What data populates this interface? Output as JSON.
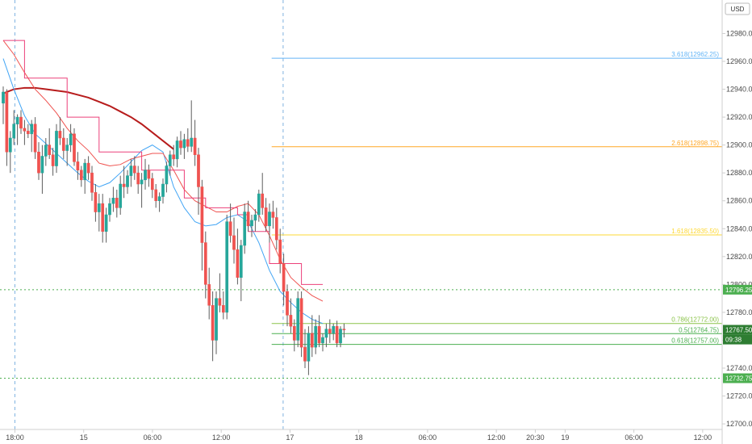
{
  "chart_data": {
    "type": "candlestick",
    "currency": "USD",
    "y_axis": {
      "ylim": [
        12696,
        13004
      ],
      "ticks": [
        12700,
        12720,
        12740,
        12760,
        12780,
        12800,
        12820,
        12840,
        12860,
        12880,
        12900,
        12920,
        12940,
        12960,
        12980
      ],
      "tick_labels": [
        "12700.00",
        "12720.00",
        "12740.00",
        "12760.00",
        "12780.00",
        "12800.00",
        "12820.00",
        "12840.00",
        "12860.00",
        "12880.00",
        "12900.00",
        "12920.00",
        "12940.00",
        "12960.00",
        "12980.00"
      ]
    },
    "x_axis": {
      "labels": [
        {
          "text": "18:00",
          "x": 0
        },
        {
          "text": "15",
          "x": 6
        },
        {
          "text": "06:00",
          "x": 12
        },
        {
          "text": "12:00",
          "x": 18
        },
        {
          "text": "17",
          "x": 24
        },
        {
          "text": "18",
          "x": 30
        },
        {
          "text": "06:00",
          "x": 36
        },
        {
          "text": "12:00",
          "x": 42
        },
        {
          "text": "20:30",
          "x": 45.4
        },
        {
          "text": "19",
          "x": 48
        },
        {
          "text": "06:00",
          "x": 54
        },
        {
          "text": "12:00",
          "x": 60
        }
      ],
      "xlim": [
        -1.3,
        61.7
      ],
      "session_breaks": [
        0,
        23.4
      ]
    },
    "ohlc": [
      [
        12930,
        12942,
        12915,
        12938
      ],
      [
        12938,
        12940,
        12885,
        12895
      ],
      [
        12895,
        12910,
        12880,
        12905
      ],
      [
        12905,
        12925,
        12900,
        12915
      ],
      [
        12915,
        12922,
        12900,
        12920
      ],
      [
        12920,
        12925,
        12908,
        12912
      ],
      [
        12912,
        12918,
        12900,
        12910
      ],
      [
        12910,
        12915,
        12905,
        12908
      ],
      [
        12908,
        12918,
        12895,
        12915
      ],
      [
        12915,
        12920,
        12890,
        12895
      ],
      [
        12895,
        12902,
        12875,
        12880
      ],
      [
        12880,
        12900,
        12865,
        12892
      ],
      [
        12892,
        12905,
        12885,
        12900
      ],
      [
        12900,
        12912,
        12890,
        12893
      ],
      [
        12893,
        12898,
        12878,
        12885
      ],
      [
        12885,
        12915,
        12880,
        12910
      ],
      [
        12910,
        12920,
        12900,
        12905
      ],
      [
        12905,
        12912,
        12890,
        12896
      ],
      [
        12896,
        12905,
        12885,
        12900
      ],
      [
        12900,
        12915,
        12895,
        12908
      ],
      [
        12908,
        12912,
        12885,
        12888
      ],
      [
        12888,
        12895,
        12875,
        12882
      ],
      [
        12882,
        12885,
        12870,
        12875
      ],
      [
        12875,
        12890,
        12865,
        12887
      ],
      [
        12887,
        12892,
        12875,
        12880
      ],
      [
        12880,
        12885,
        12860,
        12866
      ],
      [
        12866,
        12872,
        12845,
        12852
      ],
      [
        12852,
        12865,
        12838,
        12858
      ],
      [
        12858,
        12865,
        12830,
        12838
      ],
      [
        12838,
        12855,
        12830,
        12850
      ],
      [
        12850,
        12862,
        12845,
        12858
      ],
      [
        12858,
        12870,
        12852,
        12862
      ],
      [
        12862,
        12868,
        12848,
        12855
      ],
      [
        12855,
        12878,
        12850,
        12872
      ],
      [
        12872,
        12885,
        12862,
        12870
      ],
      [
        12870,
        12882,
        12865,
        12878
      ],
      [
        12878,
        12890,
        12870,
        12885
      ],
      [
        12885,
        12892,
        12875,
        12880
      ],
      [
        12880,
        12885,
        12865,
        12872
      ],
      [
        12872,
        12880,
        12855,
        12875
      ],
      [
        12875,
        12890,
        12868,
        12882
      ],
      [
        12882,
        12886,
        12870,
        12876
      ],
      [
        12876,
        12880,
        12862,
        12868
      ],
      [
        12868,
        12872,
        12855,
        12860
      ],
      [
        12860,
        12866,
        12852,
        12863
      ],
      [
        12863,
        12876,
        12858,
        12872
      ],
      [
        12872,
        12888,
        12866,
        12885
      ],
      [
        12885,
        12896,
        12878,
        12893
      ],
      [
        12893,
        12900,
        12885,
        12890
      ],
      [
        12890,
        12906,
        12884,
        12903
      ],
      [
        12903,
        12910,
        12893,
        12898
      ],
      [
        12898,
        12908,
        12890,
        12904
      ],
      [
        12904,
        12912,
        12895,
        12899
      ],
      [
        12899,
        12932,
        12895,
        12905
      ],
      [
        12905,
        12918,
        12885,
        12893
      ],
      [
        12893,
        12898,
        12850,
        12870
      ],
      [
        12870,
        12875,
        12810,
        12830
      ],
      [
        12830,
        12838,
        12790,
        12800
      ],
      [
        12800,
        12812,
        12775,
        12785
      ],
      [
        12785,
        12795,
        12745,
        12760
      ],
      [
        12760,
        12795,
        12750,
        12790
      ],
      [
        12790,
        12808,
        12780,
        12785
      ],
      [
        12785,
        12795,
        12775,
        12780
      ],
      [
        12780,
        12850,
        12775,
        12845
      ],
      [
        12845,
        12858,
        12830,
        12835
      ],
      [
        12835,
        12848,
        12815,
        12825
      ],
      [
        12825,
        12840,
        12800,
        12805
      ],
      [
        12805,
        12832,
        12788,
        12828
      ],
      [
        12828,
        12858,
        12822,
        12852
      ],
      [
        12852,
        12860,
        12838,
        12842
      ],
      [
        12842,
        12850,
        12834,
        12846
      ],
      [
        12846,
        12854,
        12838,
        12850
      ],
      [
        12850,
        12868,
        12845,
        12865
      ],
      [
        12865,
        12880,
        12850,
        12855
      ],
      [
        12855,
        12862,
        12838,
        12842
      ],
      [
        12842,
        12858,
        12830,
        12852
      ],
      [
        12852,
        12860,
        12840,
        12848
      ],
      [
        12848,
        12855,
        12825,
        12832
      ],
      [
        12832,
        12840,
        12808,
        12815
      ],
      [
        12815,
        12822,
        12785,
        12795
      ],
      [
        12795,
        12800,
        12770,
        12778
      ],
      [
        12778,
        12790,
        12765,
        12770
      ],
      [
        12770,
        12775,
        12752,
        12760
      ],
      [
        12760,
        12795,
        12755,
        12790
      ],
      [
        12790,
        12795,
        12748,
        12755
      ],
      [
        12755,
        12768,
        12740,
        12745
      ],
      [
        12745,
        12770,
        12735,
        12765
      ],
      [
        12765,
        12778,
        12748,
        12755
      ],
      [
        12755,
        12775,
        12750,
        12770
      ],
      [
        12770,
        12778,
        12755,
        12758
      ],
      [
        12758,
        12765,
        12752,
        12762
      ],
      [
        12762,
        12772,
        12755,
        12768
      ],
      [
        12768,
        12775,
        12758,
        12765
      ],
      [
        12765,
        12772,
        12760,
        12770
      ],
      [
        12770,
        12774,
        12755,
        12758
      ],
      [
        12758,
        12770,
        12755,
        12768
      ],
      [
        12768,
        12772,
        12762,
        12767.5
      ]
    ],
    "ma_series": [
      {
        "color": "#b71c1c",
        "start": 0,
        "values": [
          12937,
          12940,
          12941,
          12941,
          12940,
          12939,
          12938,
          12936,
          12934,
          12931,
          12928,
          12924,
          12920,
          12915,
          12909,
          12903,
          12897
        ]
      },
      {
        "color": "#42a5f5",
        "start": 0,
        "values": [
          12962,
          12940,
          12921,
          12908,
          12901,
          12894,
          12887,
          12880,
          12874,
          12870,
          12873,
          12880,
          12888,
          12896,
          12900,
          12895,
          12870,
          12855,
          12845,
          12842,
          12843,
          12848,
          12850,
          12845,
          12830,
          12810,
          12795,
          12787,
          12780,
          12775,
          12772
        ]
      },
      {
        "color": "#ef5350",
        "start": 0,
        "values": [
          12975,
          12965,
          12952,
          12940,
          12932,
          12923,
          12912,
          12903,
          12896,
          12887,
          12885,
          12886,
          12890,
          12892,
          12894,
          12894,
          12882,
          12868,
          12860,
          12856,
          12852,
          12852,
          12856,
          12858,
          12850,
          12835,
          12818,
          12805,
          12798,
          12792,
          12788
        ]
      }
    ],
    "step_line": {
      "color": "#ec407a",
      "x": [
        0,
        2,
        2,
        6,
        6,
        9,
        9,
        13,
        13,
        17,
        17,
        19,
        19,
        22,
        22,
        23,
        23,
        25,
        25,
        28,
        28,
        30
      ],
      "y": [
        12975,
        12975,
        12948,
        12948,
        12920,
        12920,
        12895,
        12895,
        12882,
        12882,
        12862,
        12862,
        12855,
        12855,
        12850,
        12850,
        12838,
        12838,
        12815,
        12815,
        12800,
        12800
      ]
    },
    "fib_levels": [
      {
        "label": "3.618(12962.25)",
        "price": 12962.25,
        "color": "#64b5f6",
        "x_start": 22.4
      },
      {
        "label": "2.618(12898.75)",
        "price": 12898.75,
        "color": "#ffa726",
        "x_start": 22.4
      },
      {
        "label": "1.618(12835.50)",
        "price": 12835.5,
        "color": "#fdd835",
        "x_start": 22.4
      },
      {
        "label": "0.786(12772.00)",
        "price": 12772.0,
        "color": "#8bc34a",
        "x_start": 22.4
      },
      {
        "label": "0.5(12764.75)",
        "price": 12764.75,
        "color": "#4caf50",
        "x_start": 22.4
      },
      {
        "label": "0.618(12757.00)",
        "price": 12757.0,
        "color": "#4caf50",
        "x_start": 22.4
      }
    ],
    "horizontal_lines": [
      {
        "price": 12796.25,
        "label": "12796.25",
        "color": "#4caf50"
      },
      {
        "price": 12732.75,
        "label": "12732.75",
        "color": "#4caf50"
      }
    ],
    "price_badges": [
      {
        "price": 12767.5,
        "label": "12767.50",
        "color": "#2e7d32"
      },
      {
        "price": 12760.5,
        "label": "09:38",
        "color": "#2e7d32"
      },
      {
        "price": 12796.25,
        "label": "12796.25",
        "color": "#4caf50"
      },
      {
        "price": 12732.75,
        "label": "12732.75",
        "color": "#4caf50"
      }
    ]
  },
  "colors": {
    "up": "#26a69a",
    "down": "#ef5350",
    "axis_line": "#cfcfcf",
    "session_break": "#7fb3e0"
  }
}
